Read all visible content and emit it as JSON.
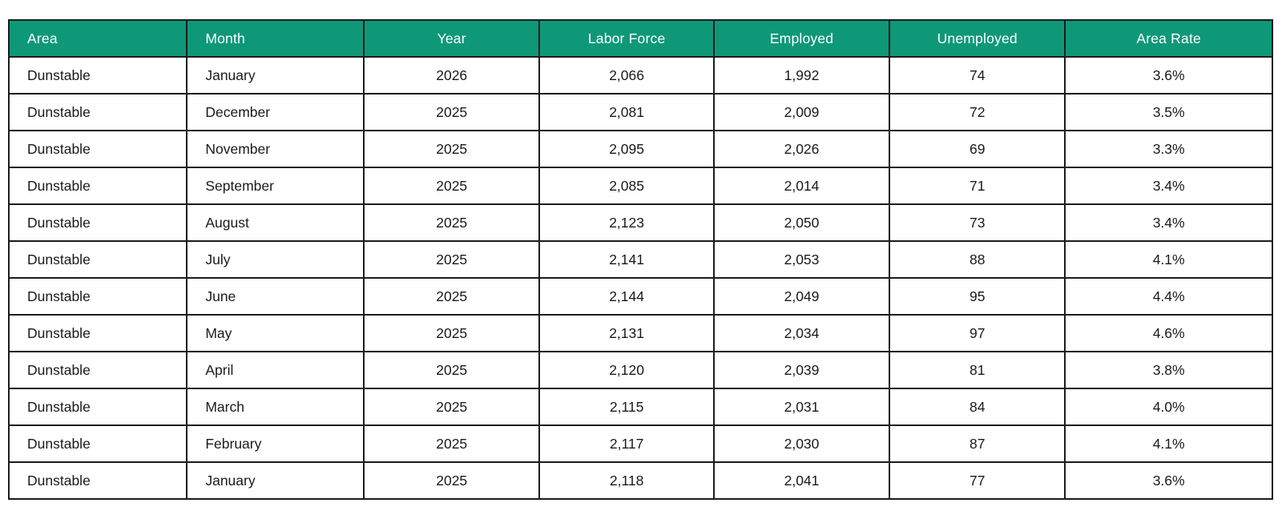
{
  "colors": {
    "header_bg": "#0F9878",
    "header_text": "#FFFFFF",
    "body_text": "#1A1A1A",
    "border": "#1C1C1C",
    "row_bg": "#FFFFFF"
  },
  "chart_data": {
    "type": "table",
    "title": "",
    "columns": [
      {
        "id": "area",
        "label": "Area",
        "align": "left"
      },
      {
        "id": "month",
        "label": "Month",
        "align": "left"
      },
      {
        "id": "year",
        "label": "Year",
        "align": "center"
      },
      {
        "id": "labor_force",
        "label": "Labor Force",
        "align": "center"
      },
      {
        "id": "employed",
        "label": "Employed",
        "align": "center"
      },
      {
        "id": "unemployed",
        "label": "Unemployed",
        "align": "center"
      },
      {
        "id": "area_rate",
        "label": "Area Rate",
        "align": "center"
      }
    ],
    "rows": [
      {
        "area": "Dunstable",
        "month": "January",
        "year": "2026",
        "labor_force": "2,066",
        "employed": "1,992",
        "unemployed": "74",
        "area_rate": "3.6%"
      },
      {
        "area": "Dunstable",
        "month": "December",
        "year": "2025",
        "labor_force": "2,081",
        "employed": "2,009",
        "unemployed": "72",
        "area_rate": "3.5%"
      },
      {
        "area": "Dunstable",
        "month": "November",
        "year": "2025",
        "labor_force": "2,095",
        "employed": "2,026",
        "unemployed": "69",
        "area_rate": "3.3%"
      },
      {
        "area": "Dunstable",
        "month": "September",
        "year": "2025",
        "labor_force": "2,085",
        "employed": "2,014",
        "unemployed": "71",
        "area_rate": "3.4%"
      },
      {
        "area": "Dunstable",
        "month": "August",
        "year": "2025",
        "labor_force": "2,123",
        "employed": "2,050",
        "unemployed": "73",
        "area_rate": "3.4%"
      },
      {
        "area": "Dunstable",
        "month": "July",
        "year": "2025",
        "labor_force": "2,141",
        "employed": "2,053",
        "unemployed": "88",
        "area_rate": "4.1%"
      },
      {
        "area": "Dunstable",
        "month": "June",
        "year": "2025",
        "labor_force": "2,144",
        "employed": "2,049",
        "unemployed": "95",
        "area_rate": "4.4%"
      },
      {
        "area": "Dunstable",
        "month": "May",
        "year": "2025",
        "labor_force": "2,131",
        "employed": "2,034",
        "unemployed": "97",
        "area_rate": "4.6%"
      },
      {
        "area": "Dunstable",
        "month": "April",
        "year": "2025",
        "labor_force": "2,120",
        "employed": "2,039",
        "unemployed": "81",
        "area_rate": "3.8%"
      },
      {
        "area": "Dunstable",
        "month": "March",
        "year": "2025",
        "labor_force": "2,115",
        "employed": "2,031",
        "unemployed": "84",
        "area_rate": "4.0%"
      },
      {
        "area": "Dunstable",
        "month": "February",
        "year": "2025",
        "labor_force": "2,117",
        "employed": "2,030",
        "unemployed": "87",
        "area_rate": "4.1%"
      },
      {
        "area": "Dunstable",
        "month": "January",
        "year": "2025",
        "labor_force": "2,118",
        "employed": "2,041",
        "unemployed": "77",
        "area_rate": "3.6%"
      }
    ]
  }
}
